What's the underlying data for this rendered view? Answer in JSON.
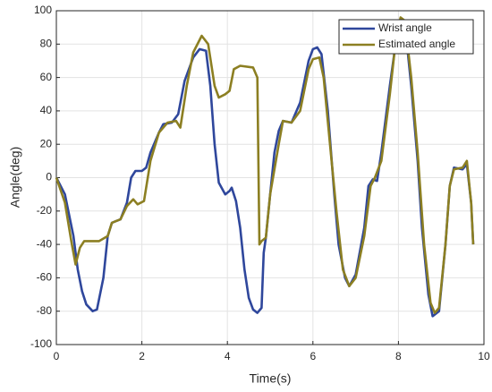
{
  "chart_data": {
    "type": "line",
    "xlabel": "Time(s)",
    "ylabel": "Angle(deg)",
    "xlim": [
      0,
      10
    ],
    "ylim": [
      -100,
      100
    ],
    "xticks": [
      0,
      2,
      4,
      6,
      8,
      10
    ],
    "yticks": [
      -100,
      -80,
      -60,
      -40,
      -20,
      0,
      20,
      40,
      60,
      80,
      100
    ],
    "grid": true,
    "legend": "upper right",
    "series": [
      {
        "name": "Wrist angle",
        "color": "#2f479c",
        "x": [
          0,
          0.2,
          0.4,
          0.5,
          0.6,
          0.7,
          0.85,
          0.95,
          1.1,
          1.2,
          1.3,
          1.5,
          1.65,
          1.75,
          1.85,
          2.0,
          2.1,
          2.2,
          2.4,
          2.5,
          2.7,
          2.85,
          3.0,
          3.2,
          3.35,
          3.5,
          3.6,
          3.7,
          3.8,
          3.95,
          4.05,
          4.1,
          4.2,
          4.3,
          4.4,
          4.5,
          4.6,
          4.7,
          4.8,
          4.85,
          4.9,
          5.0,
          5.1,
          5.2,
          5.3,
          5.5,
          5.7,
          5.9,
          6.0,
          6.1,
          6.2,
          6.35,
          6.5,
          6.6,
          6.75,
          6.85,
          7.0,
          7.2,
          7.3,
          7.4,
          7.5,
          7.6,
          7.8,
          7.95,
          8.05,
          8.15,
          8.3,
          8.45,
          8.55,
          8.7,
          8.8,
          8.95,
          9.1,
          9.2,
          9.3,
          9.5,
          9.6,
          9.7,
          9.75
        ],
        "values": [
          0,
          -10,
          -35,
          -55,
          -68,
          -76,
          -80,
          -79,
          -60,
          -35,
          -27,
          -25,
          -15,
          0,
          4,
          4,
          6,
          15,
          27,
          32,
          33,
          38,
          58,
          72,
          77,
          76,
          55,
          20,
          -3,
          -10,
          -8,
          -6,
          -14,
          -30,
          -55,
          -72,
          -79,
          -81,
          -78,
          -45,
          -36,
          -10,
          15,
          28,
          34,
          33,
          45,
          70,
          77,
          78,
          74,
          40,
          -10,
          -40,
          -60,
          -65,
          -58,
          -30,
          -5,
          -1,
          -2,
          15,
          55,
          83,
          95,
          92,
          55,
          10,
          -30,
          -70,
          -83,
          -80,
          -40,
          -5,
          6,
          5,
          8,
          -15,
          -40
        ]
      },
      {
        "name": "Estimated angle",
        "color": "#8c7f22",
        "x": [
          0,
          0.2,
          0.35,
          0.45,
          0.55,
          0.65,
          0.8,
          1.0,
          1.2,
          1.3,
          1.5,
          1.65,
          1.8,
          1.9,
          2.05,
          2.2,
          2.4,
          2.6,
          2.8,
          2.9,
          3.05,
          3.2,
          3.4,
          3.55,
          3.7,
          3.8,
          3.95,
          4.05,
          4.15,
          4.3,
          4.6,
          4.7,
          4.75,
          4.8,
          4.9,
          5.0,
          5.2,
          5.3,
          5.5,
          5.7,
          5.9,
          6.0,
          6.15,
          6.25,
          6.4,
          6.55,
          6.7,
          6.85,
          7.0,
          7.2,
          7.35,
          7.45,
          7.6,
          7.8,
          7.95,
          8.05,
          8.15,
          8.3,
          8.45,
          8.6,
          8.75,
          8.85,
          8.95,
          9.1,
          9.2,
          9.3,
          9.5,
          9.6,
          9.7,
          9.75
        ],
        "values": [
          0,
          -15,
          -38,
          -52,
          -42,
          -38,
          -38,
          -38,
          -35,
          -27,
          -25,
          -17,
          -13,
          -16,
          -14,
          10,
          27,
          33,
          34,
          30,
          55,
          75,
          85,
          80,
          55,
          48,
          50,
          52,
          65,
          67,
          66,
          60,
          -40,
          -38,
          -36,
          -10,
          20,
          34,
          33,
          40,
          65,
          71,
          72,
          60,
          20,
          -20,
          -55,
          -65,
          -60,
          -35,
          -5,
          0,
          10,
          50,
          85,
          96,
          94,
          60,
          15,
          -40,
          -75,
          -81,
          -78,
          -40,
          -5,
          5,
          6,
          10,
          -15,
          -40
        ]
      }
    ]
  }
}
